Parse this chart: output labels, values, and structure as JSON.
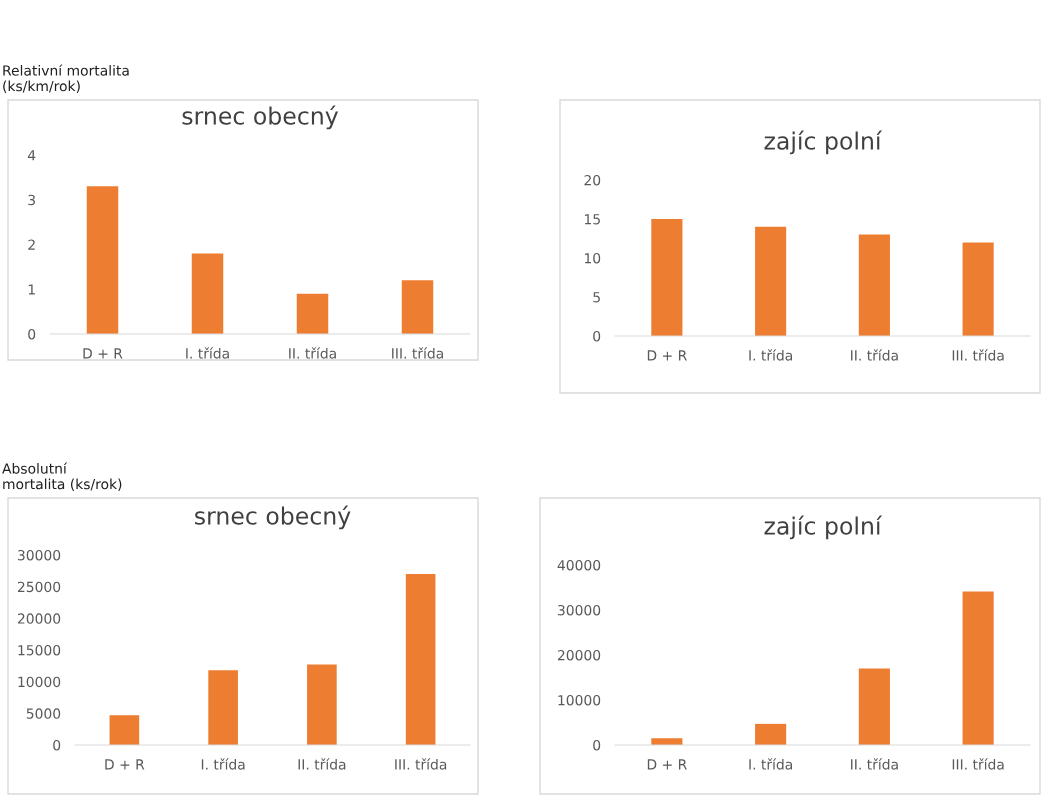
{
  "chart_data": [
    {
      "type": "bar",
      "title": "srnec obecný",
      "ylabel": "Relativní mortalita\n(ks/km/rok)",
      "categories": [
        "D + R",
        "I. třída",
        "II. třída",
        "III. třída"
      ],
      "values": [
        3.3,
        1.8,
        0.9,
        1.2
      ],
      "color": "#ed7d31",
      "ylim": [
        0,
        4
      ],
      "yticks": [
        0,
        1,
        2,
        3,
        4
      ],
      "grid": false
    },
    {
      "type": "bar",
      "title": "zajíc polní",
      "categories": [
        "D + R",
        "I. třída",
        "II. třída",
        "III. třída"
      ],
      "values": [
        15,
        14,
        13,
        12
      ],
      "color": "#ed7d31",
      "ylim": [
        0,
        20
      ],
      "yticks": [
        0,
        5,
        10,
        15,
        20
      ],
      "grid": false
    },
    {
      "type": "bar",
      "title": "srnec obecný",
      "ylabel": "Absolutní\nmortalita (ks/rok)",
      "categories": [
        "D + R",
        "I. třída",
        "II. třída",
        "III. třída"
      ],
      "values": [
        4700,
        11800,
        12700,
        27000
      ],
      "color": "#ed7d31",
      "ylim": [
        0,
        30000
      ],
      "yticks": [
        0,
        5000,
        10000,
        15000,
        20000,
        25000,
        30000
      ],
      "grid": false
    },
    {
      "type": "bar",
      "title": "zajíc polní",
      "categories": [
        "D + R",
        "I. třída",
        "II. třída",
        "III. třída"
      ],
      "values": [
        1500,
        4700,
        17000,
        34100
      ],
      "color": "#ed7d31",
      "ylim": [
        0,
        40000
      ],
      "yticks": [
        0,
        10000,
        20000,
        30000,
        40000
      ],
      "grid": false
    }
  ]
}
